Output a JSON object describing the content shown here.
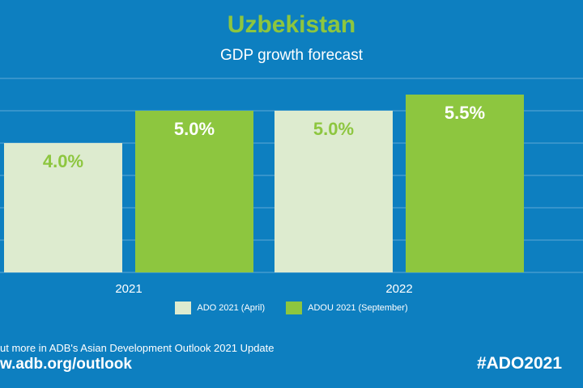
{
  "chart_data": {
    "type": "bar",
    "title": "Uzbekistan",
    "subtitle": "GDP growth forecast",
    "categories": [
      "2021",
      "2022"
    ],
    "series": [
      {
        "name": "ADO 2021 (April)",
        "values": [
          4.0,
          5.0
        ],
        "labels": [
          "4.0%",
          "5.0%"
        ],
        "color": "#ddebcf",
        "label_color": "#8dc63f"
      },
      {
        "name": "ADOU 2021 (September)",
        "values": [
          5.0,
          5.5
        ],
        "labels": [
          "5.0%",
          "5.5%"
        ],
        "color": "#8dc63f",
        "label_color": "#ffffff"
      }
    ],
    "ylim": [
      0,
      6
    ],
    "grid": true,
    "legend_position": "bottom"
  },
  "footer": {
    "text": "ut more in ADB's Asian Development Outlook 2021 Update",
    "url": "w.adb.org/outlook",
    "hashtag": "#ADO2021"
  },
  "colors": {
    "background": "#0d7fc0",
    "accent": "#8dc63f",
    "light_bar": "#ddebcf",
    "grid": "#5fa8d6"
  }
}
